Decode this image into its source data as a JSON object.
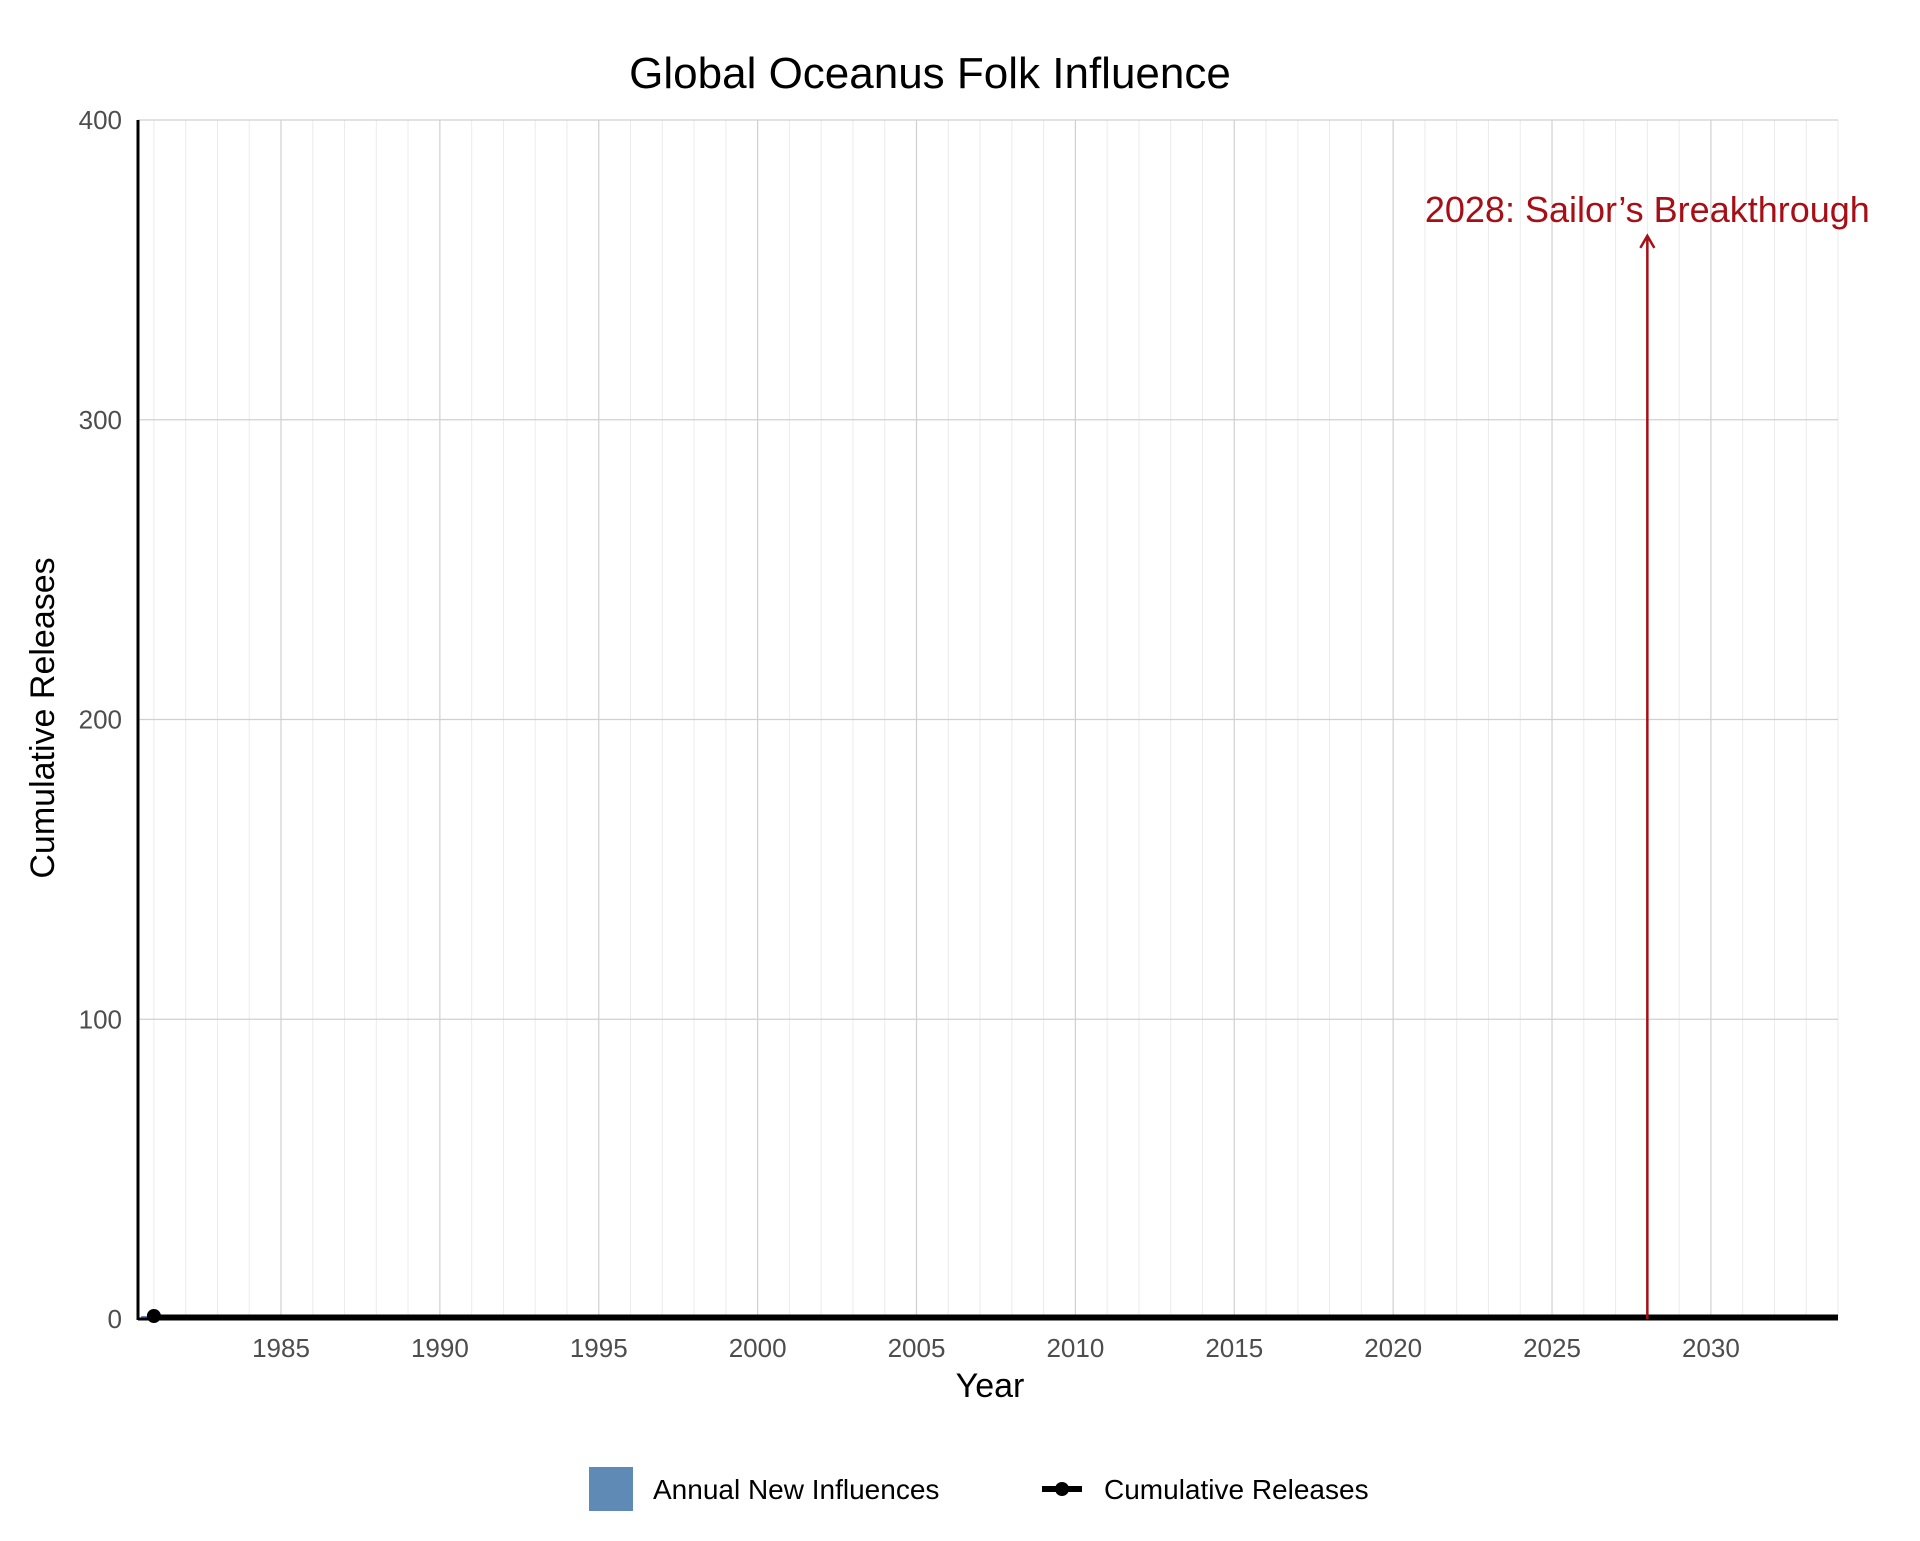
{
  "chart_data": {
    "type": "bar",
    "title": "Global Oceanus Folk Influence",
    "xlabel": "Year",
    "ylabel": "Cumulative Releases",
    "xlim": [
      1980.5,
      2034
    ],
    "ylim": [
      0,
      400
    ],
    "x_ticks": [
      1985,
      1990,
      1995,
      2000,
      2005,
      2010,
      2015,
      2020,
      2025,
      2030
    ],
    "x_tick_labels": [
      "1985",
      "1990",
      "1995",
      "2000",
      "2005",
      "2010",
      "2015",
      "2020",
      "2025",
      "2030"
    ],
    "y_ticks": [
      0,
      100,
      200,
      300,
      400
    ],
    "y_tick_labels": [
      "0",
      "100",
      "200",
      "300",
      "400"
    ],
    "grid": true,
    "series": [
      {
        "name": "Annual New Influences",
        "type": "bar",
        "color": "#5f8ab5",
        "x": [
          1981,
          1982,
          1983,
          1984,
          1985,
          1986,
          1987,
          1988,
          1989,
          1990,
          1991,
          1992,
          1993,
          1994,
          1995,
          1996,
          1997,
          1998,
          1999,
          2000,
          2001,
          2002,
          2003,
          2004,
          2005,
          2006,
          2007,
          2008,
          2009,
          2010,
          2011,
          2012,
          2013,
          2014,
          2015,
          2016,
          2017,
          2018,
          2019,
          2020,
          2021,
          2022,
          2023,
          2024,
          2025,
          2026,
          2027,
          2028,
          2029,
          2030,
          2031,
          2032,
          2033
        ],
        "values": [
          1,
          0,
          0,
          0,
          0,
          0,
          0,
          0,
          0,
          0,
          0,
          0,
          0,
          0,
          0,
          0,
          0,
          0,
          0,
          0,
          0,
          0,
          0,
          0,
          0,
          0,
          0,
          0,
          0,
          0,
          0,
          0,
          0,
          0,
          0,
          0,
          0,
          0,
          0,
          0,
          0,
          0,
          0,
          0,
          0,
          0,
          0,
          0,
          0,
          0,
          0,
          0,
          0
        ]
      },
      {
        "name": "Cumulative Releases",
        "type": "line",
        "color": "#000000",
        "x": [
          1981,
          2034
        ],
        "values": [
          1,
          1
        ],
        "marker_x": [
          1981
        ],
        "marker_values": [
          1
        ]
      }
    ],
    "annotations": [
      {
        "text": "2028: Sailor’s Breakthrough",
        "x": 2028,
        "y_text": 366,
        "y_arrow_start": 0,
        "color": "#a50f15"
      }
    ],
    "legend": {
      "position": "bottom",
      "entries": [
        "Annual New Influences",
        "Cumulative Releases"
      ]
    }
  }
}
